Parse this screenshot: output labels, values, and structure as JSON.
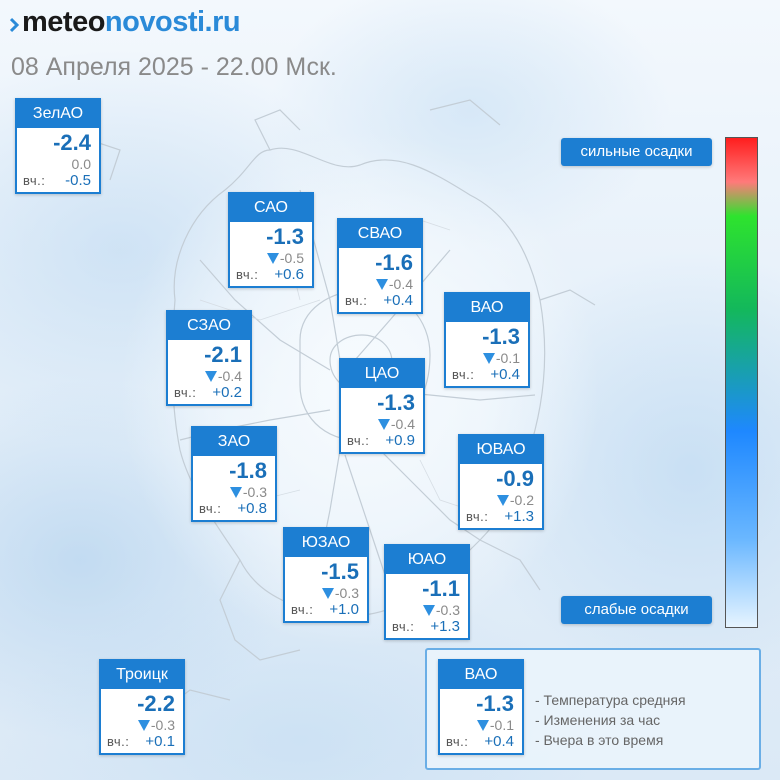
{
  "header": {
    "logo_main": "meteo",
    "logo_accent": "novosti.ru",
    "date": "08 Апреля 2025 - 22.00 Мск."
  },
  "districts": [
    {
      "name": "ЗелАО",
      "temp": "-2.4",
      "change": "0.0",
      "trend": "none",
      "yest_label": "вч.:",
      "yest": "-0.5"
    },
    {
      "name": "САО",
      "temp": "-1.3",
      "change": "-0.5",
      "trend": "down",
      "yest_label": "вч.:",
      "yest": "+0.6"
    },
    {
      "name": "СВАО",
      "temp": "-1.6",
      "change": "-0.4",
      "trend": "down",
      "yest_label": "вч.:",
      "yest": "+0.4"
    },
    {
      "name": "ВАО",
      "temp": "-1.3",
      "change": "-0.1",
      "trend": "down",
      "yest_label": "вч.:",
      "yest": "+0.4"
    },
    {
      "name": "СЗАО",
      "temp": "-2.1",
      "change": "-0.4",
      "trend": "down",
      "yest_label": "вч.:",
      "yest": "+0.2"
    },
    {
      "name": "ЦАО",
      "temp": "-1.3",
      "change": "-0.4",
      "trend": "down",
      "yest_label": "вч.:",
      "yest": "+0.9"
    },
    {
      "name": "ЗАО",
      "temp": "-1.8",
      "change": "-0.3",
      "trend": "down",
      "yest_label": "вч.:",
      "yest": "+0.8"
    },
    {
      "name": "ЮВАО",
      "temp": "-0.9",
      "change": "-0.2",
      "trend": "down",
      "yest_label": "вч.:",
      "yest": "+1.3"
    },
    {
      "name": "ЮЗАО",
      "temp": "-1.5",
      "change": "-0.3",
      "trend": "down",
      "yest_label": "вч.:",
      "yest": "+1.0"
    },
    {
      "name": "ЮАО",
      "temp": "-1.1",
      "change": "-0.3",
      "trend": "down",
      "yest_label": "вч.:",
      "yest": "+1.3"
    },
    {
      "name": "Троицк",
      "temp": "-2.2",
      "change": "-0.3",
      "trend": "down",
      "yest_label": "вч.:",
      "yest": "+0.1"
    }
  ],
  "scale": {
    "high_label": "сильные осадки",
    "low_label": "слабые осадки"
  },
  "legend": {
    "sample": {
      "name": "ВАО",
      "temp": "-1.3",
      "change": "-0.1",
      "trend": "down",
      "yest_label": "вч.:",
      "yest": "+0.4"
    },
    "items": [
      "- Температура средняя",
      "- Изменения за час",
      "- Вчера в это время"
    ]
  },
  "colors": {
    "accent": "#1c7ed2",
    "value_text": "#1a6fb8",
    "trend_down": "#2d8fe0"
  }
}
